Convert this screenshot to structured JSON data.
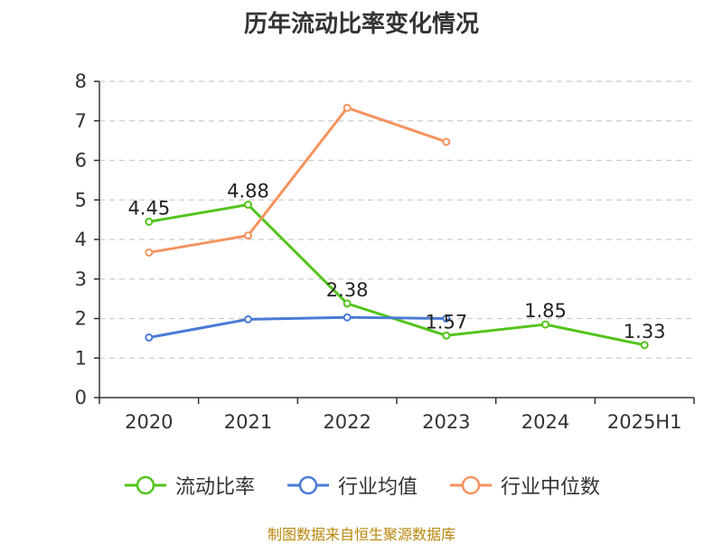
{
  "chart_data": {
    "type": "line",
    "title": "历年流动比率变化情况",
    "categories": [
      "2020",
      "2021",
      "2022",
      "2023",
      "2024",
      "2025H1"
    ],
    "ylim": [
      0,
      8
    ],
    "yticks": [
      "0",
      "1",
      "2",
      "3",
      "4",
      "5",
      "6",
      "7",
      "8"
    ],
    "grid": true,
    "legend_position": "bottom",
    "series": [
      {
        "name": "流动比率",
        "color": "#52c41a",
        "values": [
          4.45,
          4.88,
          2.38,
          1.57,
          1.85,
          1.33
        ],
        "labels": [
          "4.45",
          "4.88",
          "2.38",
          "1.57",
          "1.85",
          "1.33"
        ]
      },
      {
        "name": "行业均值",
        "color": "#4a7bd6",
        "values": [
          1.52,
          1.98,
          2.03,
          2.0,
          null,
          null
        ]
      },
      {
        "name": "行业中位数",
        "color": "#f5935f",
        "values": [
          3.67,
          4.1,
          7.33,
          6.47,
          null,
          null
        ]
      }
    ]
  },
  "source": "制图数据来自恒生聚源数据库"
}
